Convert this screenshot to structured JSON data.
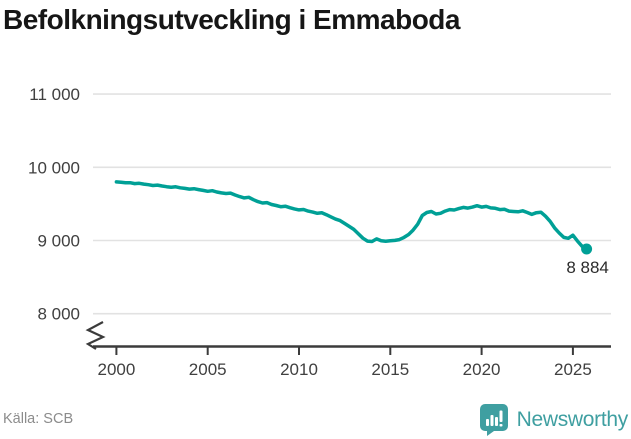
{
  "title": "Befolkningsutveckling i Emmaboda",
  "footer": {
    "source": "Källa: SCB",
    "brand": "Newsworthy"
  },
  "colors": {
    "line": "#00a096",
    "brand": "#3f9fa1",
    "grid": "#e2e2e2",
    "axis": "#3b3b3b",
    "text": "#404040",
    "title": "#161616",
    "muted": "#8c8c8c"
  },
  "chart_data": {
    "type": "line",
    "title": "Befolkningsutveckling i Emmaboda",
    "xlabel": "",
    "ylabel": "",
    "grid": true,
    "legend": false,
    "axis_break": true,
    "xlim": [
      1998.7,
      2027.1
    ],
    "ylim_displayed": [
      8000,
      11000
    ],
    "x_ticks": [
      {
        "value": 2000,
        "label": "2000"
      },
      {
        "value": 2005,
        "label": "2005"
      },
      {
        "value": 2010,
        "label": "2010"
      },
      {
        "value": 2015,
        "label": "2015"
      },
      {
        "value": 2020,
        "label": "2020"
      },
      {
        "value": 2025,
        "label": "2025"
      }
    ],
    "y_ticks": [
      {
        "value": 8000,
        "label": "8 000"
      },
      {
        "value": 9000,
        "label": "9 000"
      },
      {
        "value": 10000,
        "label": "10 000"
      },
      {
        "value": 11000,
        "label": "11 000"
      }
    ],
    "end_point_label": "8 884",
    "end_point_value": 8884,
    "series": [
      {
        "name": "Befolkning",
        "x": [
          2000.0,
          2000.25,
          2000.5,
          2000.75,
          2001.0,
          2001.25,
          2001.5,
          2001.75,
          2002.0,
          2002.25,
          2002.5,
          2002.75,
          2003.0,
          2003.25,
          2003.5,
          2003.75,
          2004.0,
          2004.25,
          2004.5,
          2004.75,
          2005.0,
          2005.25,
          2005.5,
          2005.75,
          2006.0,
          2006.25,
          2006.5,
          2006.75,
          2007.0,
          2007.25,
          2007.5,
          2007.75,
          2008.0,
          2008.25,
          2008.5,
          2008.75,
          2009.0,
          2009.25,
          2009.5,
          2009.75,
          2010.0,
          2010.25,
          2010.5,
          2010.75,
          2011.0,
          2011.25,
          2011.5,
          2011.75,
          2012.0,
          2012.25,
          2012.5,
          2012.75,
          2013.0,
          2013.25,
          2013.5,
          2013.75,
          2014.0,
          2014.25,
          2014.5,
          2014.75,
          2015.0,
          2015.25,
          2015.5,
          2015.75,
          2016.0,
          2016.25,
          2016.5,
          2016.75,
          2017.0,
          2017.25,
          2017.5,
          2017.75,
          2018.0,
          2018.25,
          2018.5,
          2018.75,
          2019.0,
          2019.25,
          2019.5,
          2019.75,
          2020.0,
          2020.25,
          2020.5,
          2020.75,
          2021.0,
          2021.25,
          2021.5,
          2021.75,
          2022.0,
          2022.25,
          2022.5,
          2022.75,
          2023.0,
          2023.25,
          2023.5,
          2023.75,
          2024.0,
          2024.25,
          2024.5,
          2024.75,
          2025.0,
          2025.25,
          2025.5,
          2025.75
        ],
        "y": [
          9800,
          9795,
          9788,
          9790,
          9778,
          9782,
          9770,
          9762,
          9752,
          9757,
          9745,
          9735,
          9728,
          9733,
          9720,
          9712,
          9702,
          9708,
          9695,
          9685,
          9672,
          9680,
          9662,
          9650,
          9642,
          9648,
          9622,
          9600,
          9582,
          9590,
          9558,
          9532,
          9512,
          9518,
          9492,
          9478,
          9462,
          9468,
          9448,
          9432,
          9418,
          9424,
          9402,
          9388,
          9372,
          9378,
          9352,
          9322,
          9292,
          9272,
          9232,
          9192,
          9152,
          9092,
          9032,
          8992,
          8986,
          9022,
          8996,
          8990,
          8996,
          9002,
          9012,
          9042,
          9082,
          9142,
          9222,
          9342,
          9382,
          9396,
          9362,
          9372,
          9402,
          9422,
          9416,
          9436,
          9452,
          9442,
          9456,
          9476,
          9456,
          9466,
          9446,
          9440,
          9422,
          9428,
          9402,
          9396,
          9392,
          9406,
          9382,
          9356,
          9380,
          9386,
          9332,
          9262,
          9172,
          9102,
          9042,
          9030,
          9072,
          8992,
          8922,
          8884
        ]
      }
    ]
  }
}
